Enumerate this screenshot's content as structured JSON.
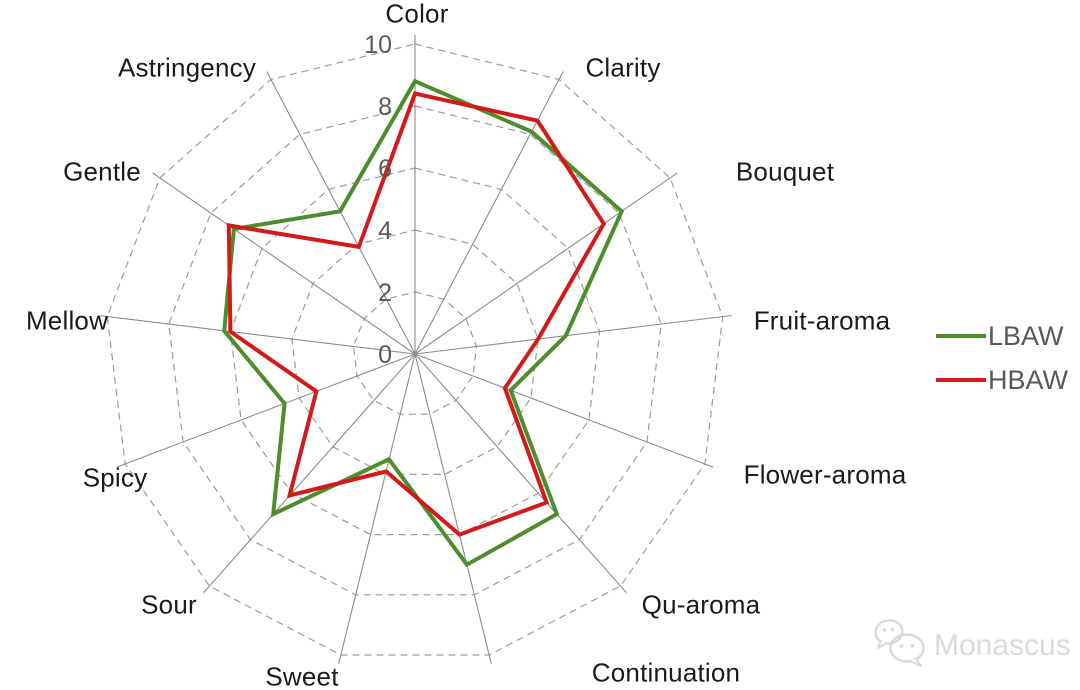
{
  "chart_data": {
    "type": "radar",
    "categories": [
      "Color",
      "Clarity",
      "Bouquet",
      "Fruit-aroma",
      "Flower-aroma",
      "Qu-aroma",
      "Continuation",
      "Sweet",
      "Sour",
      "Spicy",
      "Mellow",
      "Gentle",
      "Astringency"
    ],
    "series": [
      {
        "name": "LBAW",
        "color": "#4e8c2c",
        "values": [
          8.8,
          8.1,
          8.1,
          4.9,
          3.3,
          6.9,
          7.0,
          3.5,
          6.9,
          4.5,
          6.2,
          7.1,
          5.2
        ]
      },
      {
        "name": "HBAW",
        "color": "#d31a1a",
        "values": [
          8.4,
          8.5,
          7.4,
          4.0,
          3.1,
          6.4,
          6.0,
          3.9,
          6.1,
          3.4,
          6.0,
          7.3,
          3.9
        ]
      }
    ],
    "radial_ticks": [
      0,
      2,
      4,
      6,
      8,
      10
    ],
    "rlim": [
      0,
      10
    ],
    "grid": "dashed-concentric-polygons",
    "spokes": "solid",
    "legend_position": "right",
    "fill": "none"
  },
  "legend": {
    "items": [
      {
        "label": "LBAW"
      },
      {
        "label": "HBAW"
      }
    ]
  },
  "watermark": {
    "text": "Monascus",
    "icon": "wechat-logo-icon"
  },
  "colors": {
    "grid_ring": "#9c9c9c",
    "spoke": "#8c8c8c",
    "axis_label": "#1b1b1b",
    "tick_label": "#595959",
    "legend_text": "#595959",
    "watermark": "#d7d7d7",
    "background": "#ffffff"
  }
}
